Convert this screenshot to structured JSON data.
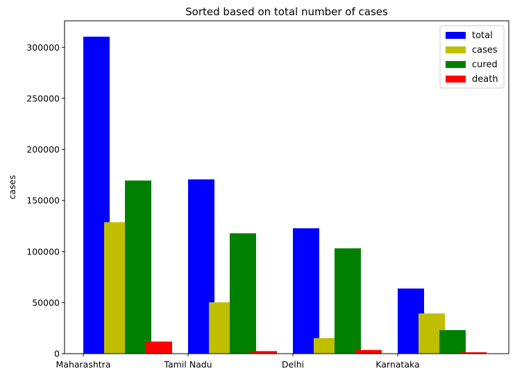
{
  "chart_data": {
    "type": "bar",
    "title": "Sorted based on total number of cases",
    "xlabel": "",
    "ylabel": "cases",
    "categories": [
      "Maharashtra",
      "Tamil Nadu",
      "Delhi",
      "Karnataka"
    ],
    "series": [
      {
        "name": "total",
        "color": "#0000ff",
        "values": [
          310455,
          170693,
          122793,
          63772
        ]
      },
      {
        "name": "cases",
        "color": "#bfbf00",
        "values": [
          128730,
          50294,
          15288,
          39370
        ]
      },
      {
        "name": "cured",
        "color": "#008000",
        "values": [
          169569,
          117915,
          103134,
          23065
        ]
      },
      {
        "name": "death",
        "color": "#ff0000",
        "values": [
          11854,
          2481,
          3628,
          1331
        ]
      }
    ],
    "ylim": [
      0,
      326000
    ],
    "yticks": [
      0,
      50000,
      100000,
      150000,
      200000,
      250000,
      300000
    ],
    "ytick_labels": [
      "0",
      "50000",
      "100000",
      "150000",
      "200000",
      "250000",
      "300000"
    ],
    "grid": false,
    "legend_position": "top-right"
  }
}
